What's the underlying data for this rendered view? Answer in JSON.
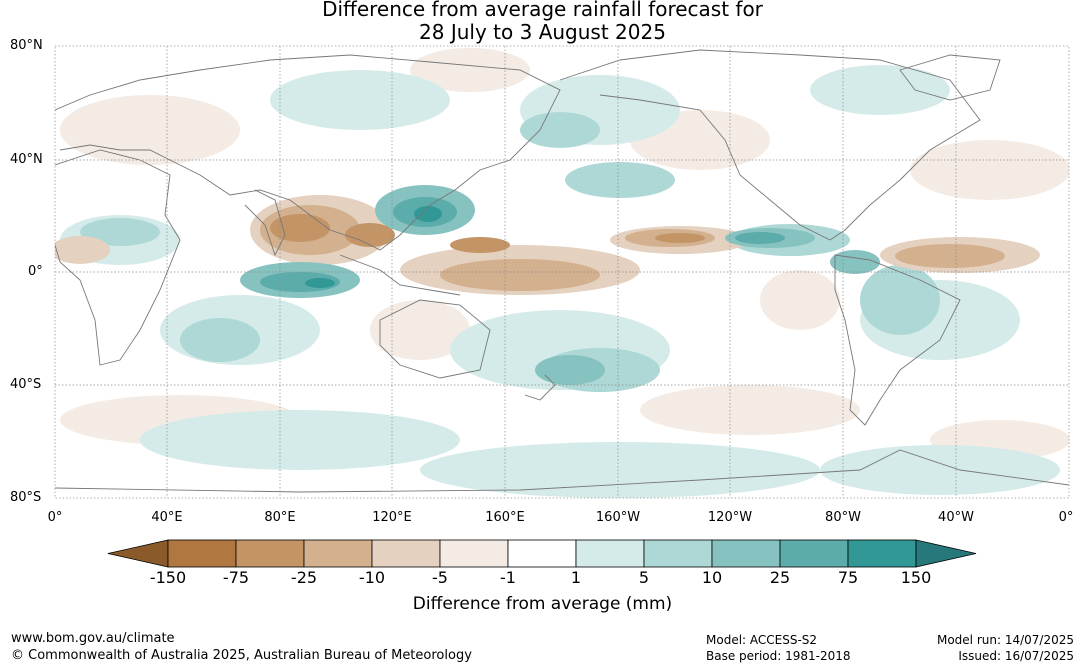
{
  "title_line1": "Difference from average rainfall forecast for",
  "title_line2": "28 July to 3 August 2025",
  "lat_labels": [
    "80°N",
    "40°N",
    "0°",
    "40°S",
    "80°S"
  ],
  "lon_labels": [
    "0°",
    "40°E",
    "80°E",
    "120°E",
    "160°E",
    "160°W",
    "120°W",
    "80°W",
    "40°W",
    "0°"
  ],
  "legend": {
    "ticks": [
      "-150",
      "-75",
      "-25",
      "-10",
      "-5",
      "-1",
      "1",
      "5",
      "10",
      "25",
      "75",
      "150"
    ],
    "colors": [
      "#8b5a2b",
      "#b07840",
      "#c29466",
      "#d3b08e",
      "#e5d1bf",
      "#f4ebe4",
      "#ffffff",
      "#d5ebe9",
      "#aed8d5",
      "#86c3c0",
      "#5bacab",
      "#319895",
      "#27787a"
    ],
    "label": "Difference from average (mm)"
  },
  "footer": {
    "website": "www.bom.gov.au/climate",
    "copyright": "© Commonwealth of Australia 2025, Australian Bureau of Meteorology",
    "model": "Model: ACCESS-S2",
    "base_period": "Base period: 1981-2018",
    "model_run": "Model run: 14/07/2025",
    "issued": "Issued: 16/07/2025"
  }
}
